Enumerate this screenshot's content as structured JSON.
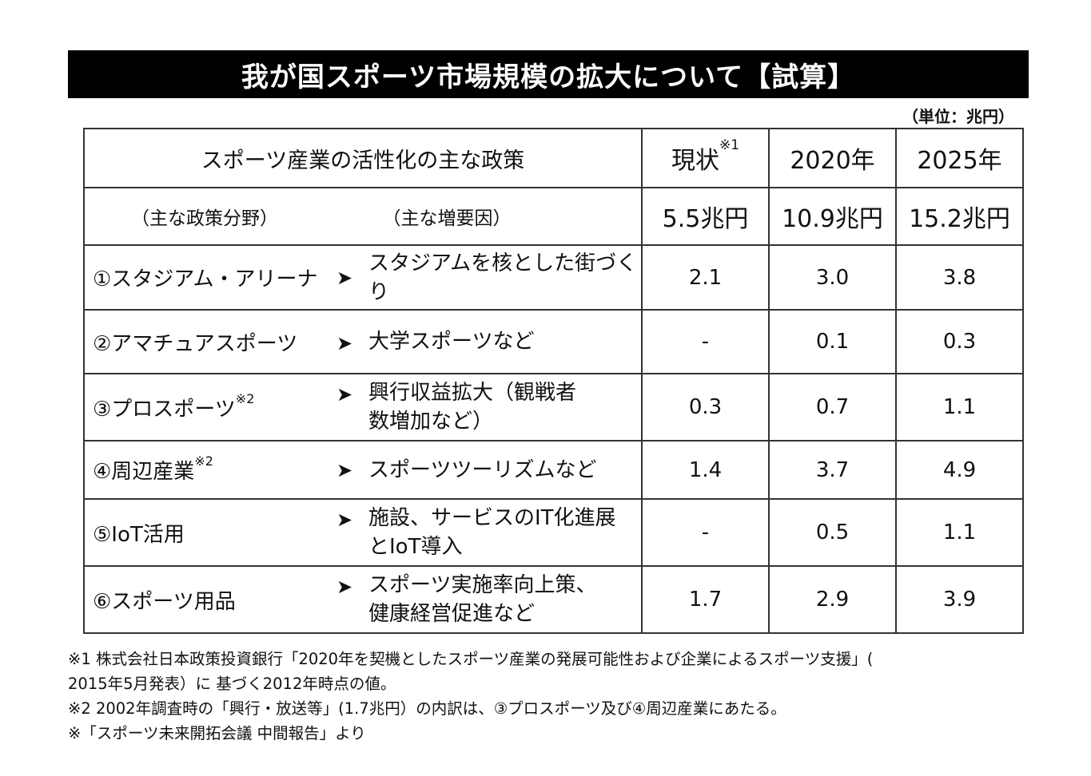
{
  "title": "我が国スポーツ市場規模の拡大について【試算】",
  "unit": "（単位：兆円）",
  "header": {
    "policy": "スポーツ産業の活性化の主な政策",
    "col_current": "現状",
    "col_current_note": "※1",
    "col_2020": "2020年",
    "col_2025": "2025年"
  },
  "subheader": {
    "area": "（主な政策分野）",
    "factor": "（主な増要因）",
    "total_current": "5.5兆円",
    "total_2020": "10.9兆円",
    "total_2025": "15.2兆円"
  },
  "arrow": "➤",
  "rows": [
    {
      "area": "①スタジアム・アリーナ",
      "note": "",
      "factor1": "スタジアムを核とした街づくり",
      "factor2": "",
      "current": "2.1",
      "y2020": "3.0",
      "y2025": "3.8"
    },
    {
      "area": "②アマチュアスポーツ",
      "note": "",
      "factor1": "大学スポーツなど",
      "factor2": "",
      "current": "-",
      "y2020": "0.1",
      "y2025": "0.3"
    },
    {
      "area": "③プロスポーツ",
      "note": "※2",
      "factor1": "興行収益拡大（観戦者",
      "factor2": "数増加など）",
      "current": "0.3",
      "y2020": "0.7",
      "y2025": "1.1"
    },
    {
      "area": "④周辺産業",
      "note": "※2",
      "factor1": "スポーツツーリズムなど",
      "factor2": "",
      "current": "1.4",
      "y2020": "3.7",
      "y2025": "4.9"
    },
    {
      "area": "⑤IoT活用",
      "note": "",
      "factor1": "施設、サービスのIT化進展",
      "factor2": "とIoT導入",
      "current": "-",
      "y2020": "0.5",
      "y2025": "1.1"
    },
    {
      "area": "⑥スポーツ用品",
      "note": "",
      "factor1": "スポーツ実施率向上策、",
      "factor2": "健康経営促進など",
      "current": "1.7",
      "y2020": "2.9",
      "y2025": "3.9"
    }
  ],
  "notes": [
    "※1 株式会社日本政策投資銀行「2020年を契機としたスポーツ産業の発展可能性および企業によるスポーツ支援」(",
    "2015年5月発表）に 基づく2012年時点の値。",
    "※2 2002年調査時の「興行・放送等」(1.7兆円）の内訳は、③プロスポーツ及び④周辺産業にあたる。",
    "※「スポーツ未来開拓会議 中間報告」より"
  ]
}
